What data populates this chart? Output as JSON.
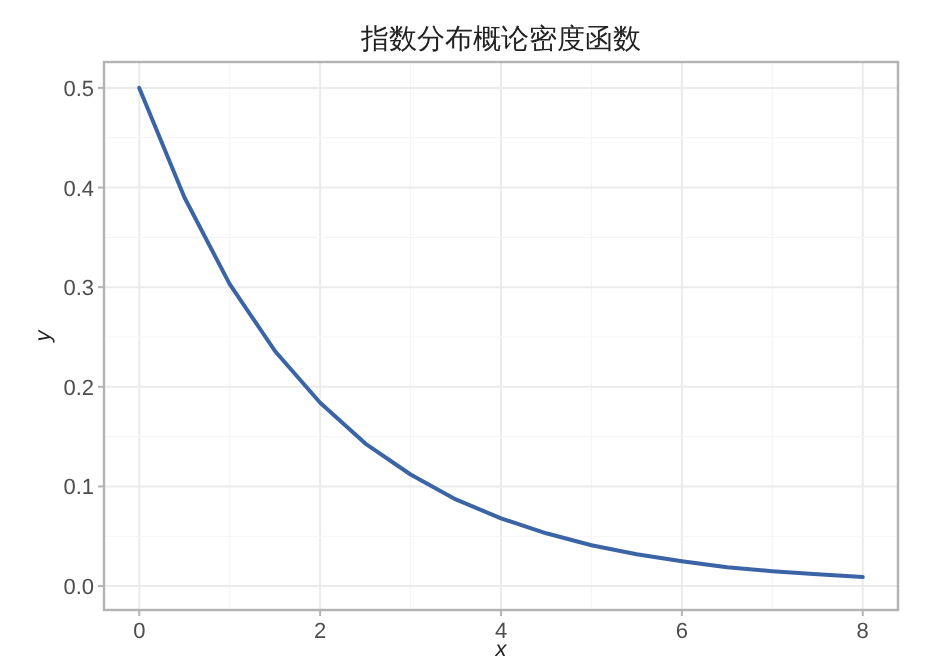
{
  "chart_data": {
    "type": "line",
    "title": "指数分布概论密度函数",
    "xlabel": "x",
    "ylabel": "y",
    "x": [
      0,
      0.5,
      1,
      1.5,
      2,
      2.5,
      3,
      3.5,
      4,
      4.5,
      5,
      5.5,
      6,
      6.5,
      7,
      7.5,
      8
    ],
    "series": [
      {
        "color": "#3a64a6",
        "values": [
          0.5,
          0.39,
          0.303,
          0.236,
          0.184,
          0.143,
          0.112,
          0.087,
          0.068,
          0.053,
          0.041,
          0.032,
          0.025,
          0.019,
          0.015,
          0.012,
          0.009
        ]
      }
    ],
    "xlim": [
      -0.39,
      8.39
    ],
    "ylim": [
      -0.024,
      0.526
    ],
    "xticks": [
      0,
      2,
      4,
      6,
      8
    ],
    "yticks": [
      {
        "value": 0,
        "label": "0.0"
      },
      0.1,
      0.2,
      0.3,
      0.4,
      0.5
    ],
    "grid": true,
    "marker": "none",
    "line_style": "solid"
  }
}
